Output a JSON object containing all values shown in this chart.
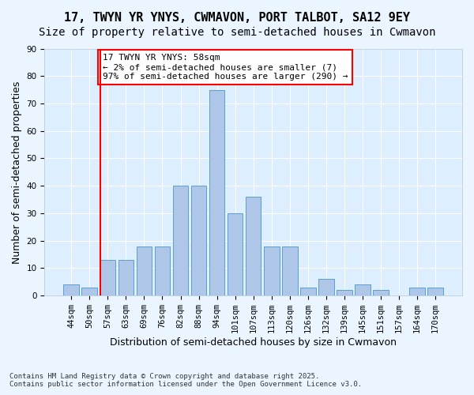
{
  "title": "17, TWYN YR YNYS, CWMAVON, PORT TALBOT, SA12 9EY",
  "subtitle": "Size of property relative to semi-detached houses in Cwmavon",
  "xlabel": "Distribution of semi-detached houses by size in Cwmavon",
  "ylabel": "Number of semi-detached properties",
  "footer_line1": "Contains HM Land Registry data © Crown copyright and database right 2025.",
  "footer_line2": "Contains public sector information licensed under the Open Government Licence v3.0.",
  "annotation_line1": "17 TWYN YR YNYS: 58sqm",
  "annotation_line2": "← 2% of semi-detached houses are smaller (7)",
  "annotation_line3": "97% of semi-detached houses are larger (290) →",
  "bar_labels": [
    "44sqm",
    "50sqm",
    "57sqm",
    "63sqm",
    "69sqm",
    "76sqm",
    "82sqm",
    "88sqm",
    "94sqm",
    "101sqm",
    "107sqm",
    "113sqm",
    "120sqm",
    "126sqm",
    "132sqm",
    "139sqm",
    "145sqm",
    "151sqm",
    "157sqm",
    "164sqm",
    "170sqm"
  ],
  "bar_values": [
    4,
    3,
    13,
    13,
    18,
    18,
    40,
    40,
    75,
    30,
    36,
    18,
    18,
    3,
    6,
    2,
    4,
    2,
    0,
    3,
    3
  ],
  "bar_color": "#aec6e8",
  "bar_edge_color": "#5a9fd4",
  "red_line_bar_index": 2,
  "ylim": [
    0,
    90
  ],
  "yticks": [
    0,
    10,
    20,
    30,
    40,
    50,
    60,
    70,
    80,
    90
  ],
  "plot_bg_color": "#ddeeff",
  "fig_bg_color": "#eaf5ff",
  "grid_color": "#ffffff",
  "title_fontsize": 11,
  "subtitle_fontsize": 10,
  "xlabel_fontsize": 9,
  "ylabel_fontsize": 9,
  "tick_fontsize": 7.5,
  "annotation_fontsize": 8,
  "footer_fontsize": 6.5
}
